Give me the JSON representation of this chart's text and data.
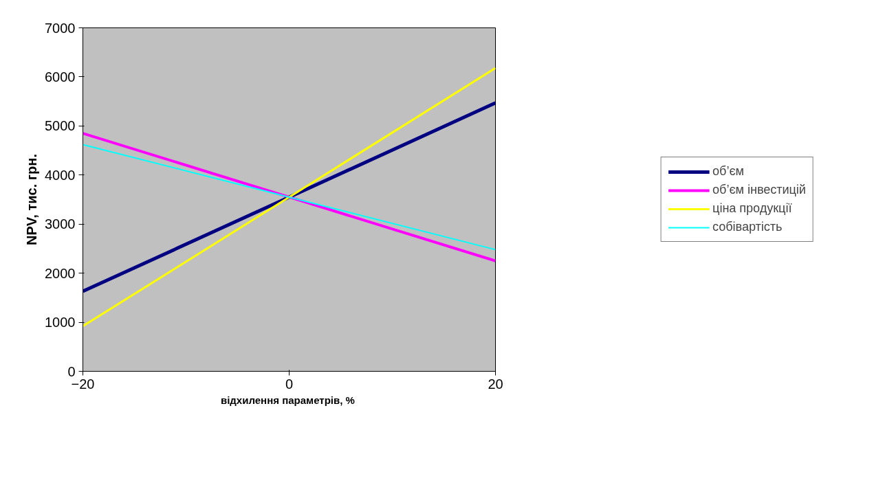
{
  "chart_data": {
    "type": "line",
    "xlabel": "відхилення параметрів,  %",
    "ylabel": "NPV, тис. грн.",
    "x": [
      -20,
      0,
      20
    ],
    "xlim": [
      -20,
      20
    ],
    "xticks": [
      -20,
      0,
      20
    ],
    "ylim": [
      0,
      7000
    ],
    "yticks": [
      0,
      1000,
      2000,
      3000,
      4000,
      5000,
      6000,
      7000
    ],
    "grid": false,
    "legend": "right",
    "marker": "none",
    "line_style": "solid",
    "series": [
      {
        "name": "об’єм",
        "color": "#000080",
        "values": [
          1630,
          3550,
          5470
        ]
      },
      {
        "name": "об’єм інвестицій",
        "color": "#ff00ff",
        "values": [
          4850,
          3550,
          2250
        ]
      },
      {
        "name": "ціна продукції",
        "color": "#ffff00",
        "values": [
          920,
          3550,
          6180
        ]
      },
      {
        "name": "собівартість",
        "color": "#00ffff",
        "values": [
          4620,
          3550,
          2480
        ]
      }
    ]
  }
}
